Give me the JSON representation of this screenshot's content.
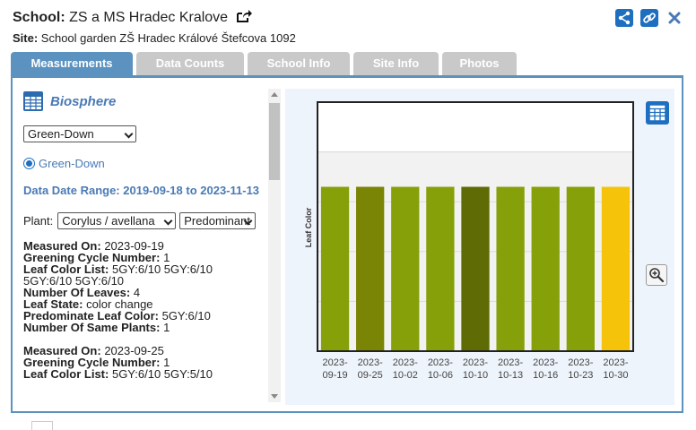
{
  "header": {
    "school_label": "School:",
    "school_name": "ZS a MS Hradec Kralove",
    "site_label": "Site:",
    "site_name": "School garden ZŠ Hradec Králové Štefcova 1092"
  },
  "header_icons": {
    "share_icon": "share-icon",
    "link_icon": "link-icon",
    "close_icon": "close-icon",
    "external_icon": "external-link-icon"
  },
  "tabs": [
    {
      "label": "Measurements",
      "active": true
    },
    {
      "label": "Data Counts",
      "active": false
    },
    {
      "label": "School Info",
      "active": false
    },
    {
      "label": "Site Info",
      "active": false
    },
    {
      "label": "Photos",
      "active": false
    }
  ],
  "left": {
    "title": "Biosphere",
    "protocol_select": "Green-Down",
    "radio_label": "Green-Down",
    "date_range_label": "Data Date Range:",
    "date_range_value": "2019-09-18 to 2023-11-13",
    "plant_label": "Plant:",
    "plant_select": "Corylus / avellana",
    "plant_select2": "Predominant",
    "records": [
      {
        "measured_on_label": "Measured On:",
        "measured_on": "2023-09-19",
        "cycle_label": "Greening Cycle Number:",
        "cycle": "1",
        "leaf_color_list_label": "Leaf Color List:",
        "leaf_color_list": "5GY:6/10 5GY:6/10 5GY:6/10 5GY:6/10",
        "leaves_label": "Number Of Leaves:",
        "leaves": "4",
        "leaf_state_label": "Leaf State:",
        "leaf_state": "color change",
        "predominate_label": "Predominate Leaf Color:",
        "predominate": "5GY:6/10",
        "same_plants_label": "Number Of Same Plants:",
        "same_plants": "1"
      },
      {
        "measured_on_label": "Measured On:",
        "measured_on": "2023-09-25",
        "cycle_label": "Greening Cycle Number:",
        "cycle": "1",
        "leaf_color_list_label": "Leaf Color List:",
        "leaf_color_list": "5GY:6/10 5GY:5/10"
      }
    ]
  },
  "chart_data": {
    "type": "bar",
    "ylabel": "Leaf Color",
    "categories": [
      "2023-09-19",
      "2023-09-25",
      "2023-10-02",
      "2023-10-06",
      "2023-10-10",
      "2023-10-13",
      "2023-10-16",
      "2023-10-23",
      "2023-10-30"
    ],
    "values": [
      3.3,
      3.3,
      3.3,
      3.3,
      3.3,
      3.3,
      3.3,
      3.3,
      3.3
    ],
    "bar_colors": [
      "#86a00a",
      "#7a8405",
      "#86a00a",
      "#86a00a",
      "#5f6b04",
      "#86a00a",
      "#86a00a",
      "#86a00a",
      "#f5c30a"
    ],
    "ylim": [
      0,
      5
    ],
    "grid": true,
    "plot_background": "#ffffff"
  },
  "chart_icons": {
    "table_icon": "table-icon",
    "zoom_icon": "zoom-in-icon"
  },
  "colors": {
    "accent": "#1e6fc0",
    "tab_active": "#5b92c0",
    "tab_inactive": "#c9c9c9",
    "title_blue": "#4a7ab5"
  }
}
